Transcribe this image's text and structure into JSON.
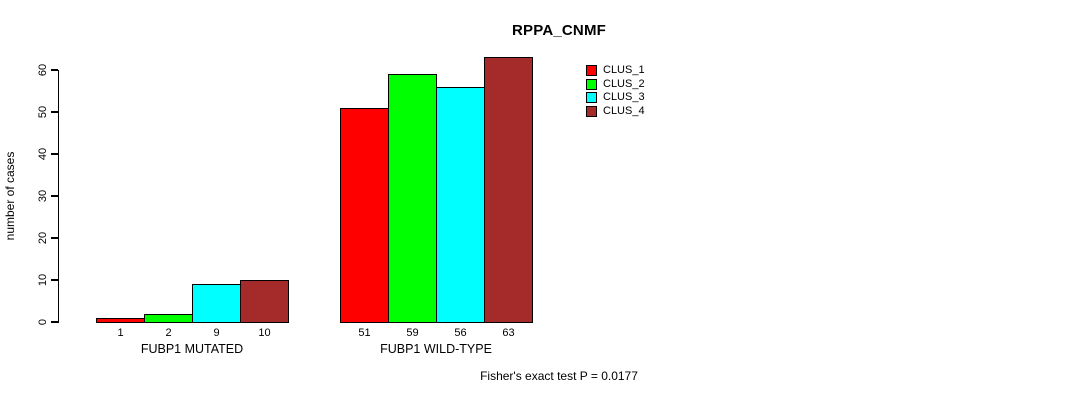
{
  "chart_data": {
    "type": "bar",
    "title": "RPPA_CNMF",
    "ylabel": "number of cases",
    "xlabel": "",
    "ylim": [
      0,
      60
    ],
    "yticks": [
      0,
      10,
      20,
      30,
      40,
      50,
      60
    ],
    "grid": false,
    "series": [
      "CLUS_1",
      "CLUS_2",
      "CLUS_3",
      "CLUS_4"
    ],
    "series_colors": [
      "#FF0000",
      "#00FF00",
      "#00FFFF",
      "#A52A2A"
    ],
    "groups": [
      {
        "label": "FUBP1 MUTATED",
        "values": [
          1,
          2,
          9,
          10
        ]
      },
      {
        "label": "FUBP1 WILD-TYPE",
        "values": [
          51,
          59,
          56,
          63
        ]
      }
    ],
    "bar_value_labels": [
      "1",
      "2",
      "9",
      "10",
      "51",
      "59",
      "56",
      "63"
    ],
    "annotation": "Fisher's exact test P = 0.0177",
    "legend_position": "inside-plot-right-of-center"
  },
  "legend": [
    {
      "label": "CLUS_1",
      "color": "#FF0000"
    },
    {
      "label": "CLUS_2",
      "color": "#00FF00"
    },
    {
      "label": "CLUS_3",
      "color": "#00FFFF"
    },
    {
      "label": "CLUS_4",
      "color": "#A52A2A"
    }
  ],
  "colors": {
    "background": "#FFFFFF",
    "axis": "#000000",
    "bar_border": "#000000"
  }
}
